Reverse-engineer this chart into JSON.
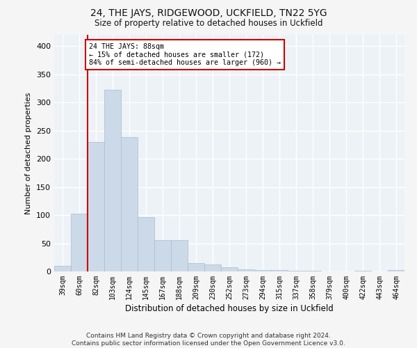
{
  "title": "24, THE JAYS, RIDGEWOOD, UCKFIELD, TN22 5YG",
  "subtitle": "Size of property relative to detached houses in Uckfield",
  "xlabel": "Distribution of detached houses by size in Uckfield",
  "ylabel": "Number of detached properties",
  "footer_line1": "Contains HM Land Registry data © Crown copyright and database right 2024.",
  "footer_line2": "Contains public sector information licensed under the Open Government Licence v3.0.",
  "categories": [
    "39sqm",
    "60sqm",
    "82sqm",
    "103sqm",
    "124sqm",
    "145sqm",
    "167sqm",
    "188sqm",
    "209sqm",
    "230sqm",
    "252sqm",
    "273sqm",
    "294sqm",
    "315sqm",
    "337sqm",
    "358sqm",
    "379sqm",
    "400sqm",
    "422sqm",
    "443sqm",
    "464sqm"
  ],
  "bar_values": [
    10,
    102,
    230,
    323,
    238,
    96,
    55,
    55,
    15,
    12,
    8,
    4,
    2,
    2,
    1,
    1,
    0,
    0,
    1,
    0,
    2
  ],
  "bar_color": "#ccd9e8",
  "bar_edgecolor": "#aabbd0",
  "bg_color": "#edf2f7",
  "grid_color": "#ffffff",
  "vline_color": "#cc0000",
  "annotation_text": "24 THE JAYS: 88sqm\n← 15% of detached houses are smaller (172)\n84% of semi-detached houses are larger (960) →",
  "annotation_box_color": "#cc0000",
  "ylim": [
    0,
    420
  ],
  "yticks": [
    0,
    50,
    100,
    150,
    200,
    250,
    300,
    350,
    400
  ],
  "fig_bg": "#f5f5f5"
}
